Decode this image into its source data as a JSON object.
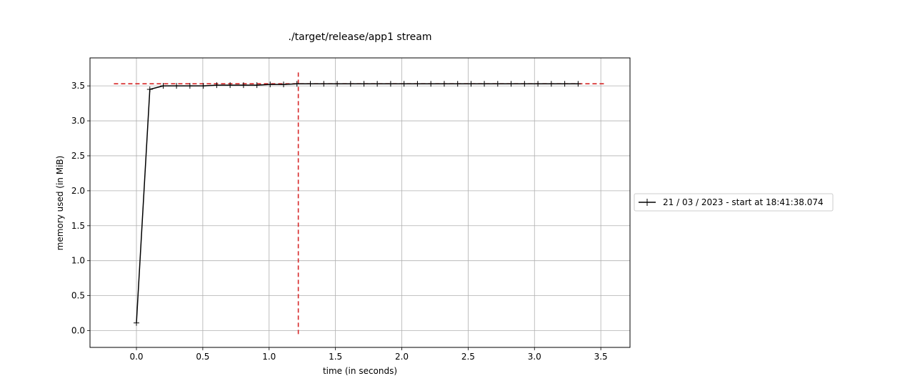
{
  "chart_data": {
    "type": "line",
    "title": "./target/release/app1 stream",
    "xlabel": "time (in seconds)",
    "ylabel": "memory used (in MiB)",
    "xlim": [
      -0.35,
      3.72
    ],
    "ylim": [
      -0.24,
      3.9
    ],
    "xticks": [
      "0.0",
      "0.5",
      "1.0",
      "1.5",
      "2.0",
      "2.5",
      "3.0",
      "3.5"
    ],
    "yticks": [
      "0.0",
      "0.5",
      "1.0",
      "1.5",
      "2.0",
      "2.5",
      "3.0",
      "3.5"
    ],
    "grid": true,
    "legend_position": "outside right",
    "series": [
      {
        "name": "21 / 03 / 2023 - start at 18:41:38.074",
        "color": "#000000",
        "marker": "+",
        "x": [
          0.0,
          0.101,
          0.202,
          0.302,
          0.403,
          0.504,
          0.605,
          0.706,
          0.807,
          0.908,
          1.008,
          1.109,
          1.21,
          1.311,
          1.412,
          1.513,
          1.614,
          1.715,
          1.815,
          1.916,
          2.017,
          2.118,
          2.219,
          2.32,
          2.421,
          2.522,
          2.622,
          2.723,
          2.824,
          2.925,
          3.026,
          3.127,
          3.228,
          3.329
        ],
        "y": [
          0.11,
          3.45,
          3.5,
          3.5,
          3.5,
          3.5,
          3.51,
          3.51,
          3.51,
          3.51,
          3.52,
          3.52,
          3.53,
          3.53,
          3.53,
          3.53,
          3.53,
          3.53,
          3.53,
          3.53,
          3.53,
          3.53,
          3.53,
          3.53,
          3.53,
          3.53,
          3.53,
          3.53,
          3.53,
          3.53,
          3.53,
          3.53,
          3.53,
          3.53
        ]
      }
    ],
    "reference_lines": [
      {
        "orientation": "horizontal",
        "value": 3.53,
        "from": -0.17,
        "to": 3.54,
        "color": "#d62728",
        "style": "dashed"
      },
      {
        "orientation": "vertical",
        "value": 1.22,
        "from": -0.05,
        "to": 3.7,
        "color": "#d62728",
        "style": "dashed"
      }
    ]
  }
}
